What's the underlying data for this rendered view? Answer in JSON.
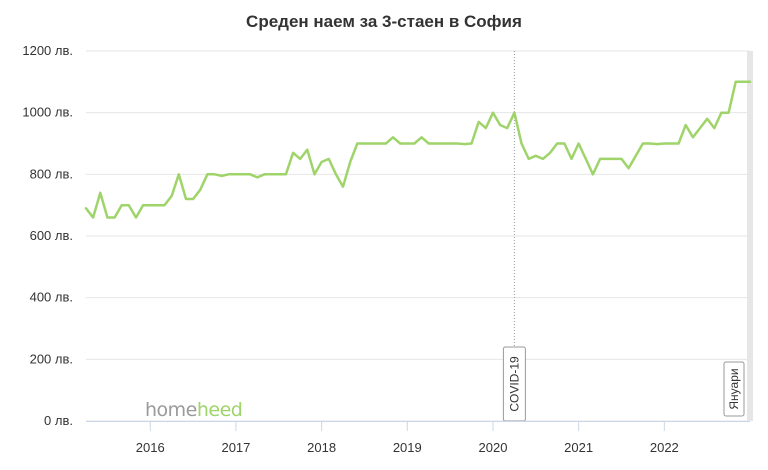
{
  "chart_data": {
    "type": "line",
    "title": "Среден наем за 3-стаен в София",
    "xlabel": "",
    "ylabel": "",
    "ylim": [
      0,
      1200
    ],
    "y_ticks": [
      0,
      200,
      400,
      600,
      800,
      1000,
      1200
    ],
    "y_tick_labels": [
      "0 лв.",
      "200 лв.",
      "400 лв.",
      "600 лв.",
      "800 лв.",
      "1000 лв.",
      "1200 лв."
    ],
    "xlim": [
      "2015-04",
      "2023-01"
    ],
    "x_tick_labels": [
      "2016",
      "2017",
      "2018",
      "2019",
      "2020",
      "2021",
      "2022"
    ],
    "x_tick_values": [
      "2016-01",
      "2017-01",
      "2018-01",
      "2019-01",
      "2020-01",
      "2021-01",
      "2022-01"
    ],
    "grid": true,
    "line_color": "#9fd46a",
    "series": [
      {
        "name": "",
        "points": [
          [
            "2015-04",
            690
          ],
          [
            "2015-05",
            660
          ],
          [
            "2015-06",
            740
          ],
          [
            "2015-07",
            660
          ],
          [
            "2015-08",
            660
          ],
          [
            "2015-09",
            700
          ],
          [
            "2015-10",
            700
          ],
          [
            "2015-11",
            660
          ],
          [
            "2015-12",
            700
          ],
          [
            "2016-01",
            700
          ],
          [
            "2016-02",
            700
          ],
          [
            "2016-03",
            700
          ],
          [
            "2016-04",
            730
          ],
          [
            "2016-05",
            800
          ],
          [
            "2016-06",
            720
          ],
          [
            "2016-07",
            720
          ],
          [
            "2016-08",
            750
          ],
          [
            "2016-09",
            800
          ],
          [
            "2016-10",
            800
          ],
          [
            "2016-11",
            795
          ],
          [
            "2016-12",
            800
          ],
          [
            "2017-01",
            800
          ],
          [
            "2017-02",
            800
          ],
          [
            "2017-03",
            800
          ],
          [
            "2017-04",
            790
          ],
          [
            "2017-05",
            800
          ],
          [
            "2017-06",
            800
          ],
          [
            "2017-07",
            800
          ],
          [
            "2017-08",
            800
          ],
          [
            "2017-09",
            870
          ],
          [
            "2017-10",
            850
          ],
          [
            "2017-11",
            880
          ],
          [
            "2017-12",
            800
          ],
          [
            "2018-01",
            840
          ],
          [
            "2018-02",
            850
          ],
          [
            "2018-03",
            800
          ],
          [
            "2018-04",
            760
          ],
          [
            "2018-05",
            840
          ],
          [
            "2018-06",
            900
          ],
          [
            "2018-07",
            900
          ],
          [
            "2018-08",
            900
          ],
          [
            "2018-09",
            900
          ],
          [
            "2018-10",
            900
          ],
          [
            "2018-11",
            920
          ],
          [
            "2018-12",
            900
          ],
          [
            "2019-01",
            900
          ],
          [
            "2019-02",
            900
          ],
          [
            "2019-03",
            920
          ],
          [
            "2019-04",
            900
          ],
          [
            "2019-05",
            900
          ],
          [
            "2019-06",
            900
          ],
          [
            "2019-07",
            900
          ],
          [
            "2019-08",
            900
          ],
          [
            "2019-09",
            898
          ],
          [
            "2019-10",
            900
          ],
          [
            "2019-11",
            970
          ],
          [
            "2019-12",
            950
          ],
          [
            "2020-01",
            1000
          ],
          [
            "2020-02",
            960
          ],
          [
            "2020-03",
            950
          ],
          [
            "2020-04",
            1000
          ],
          [
            "2020-05",
            900
          ],
          [
            "2020-06",
            850
          ],
          [
            "2020-07",
            860
          ],
          [
            "2020-08",
            850
          ],
          [
            "2020-09",
            870
          ],
          [
            "2020-10",
            900
          ],
          [
            "2020-11",
            900
          ],
          [
            "2020-12",
            850
          ],
          [
            "2021-01",
            900
          ],
          [
            "2021-02",
            850
          ],
          [
            "2021-03",
            800
          ],
          [
            "2021-04",
            850
          ],
          [
            "2021-05",
            850
          ],
          [
            "2021-06",
            850
          ],
          [
            "2021-07",
            850
          ],
          [
            "2021-08",
            820
          ],
          [
            "2021-09",
            860
          ],
          [
            "2021-10",
            900
          ],
          [
            "2021-11",
            900
          ],
          [
            "2021-12",
            898
          ],
          [
            "2022-01",
            900
          ],
          [
            "2022-02",
            900
          ],
          [
            "2022-03",
            900
          ],
          [
            "2022-04",
            960
          ],
          [
            "2022-05",
            920
          ],
          [
            "2022-06",
            950
          ],
          [
            "2022-07",
            980
          ],
          [
            "2022-08",
            950
          ],
          [
            "2022-09",
            1000
          ],
          [
            "2022-10",
            1000
          ],
          [
            "2022-11",
            1100
          ],
          [
            "2022-12",
            1100
          ],
          [
            "2023-01",
            1100
          ]
        ]
      }
    ],
    "annotations": [
      {
        "label": "COVID-19",
        "x": "2020-04",
        "type": "vline-dotted"
      },
      {
        "label": "Януари",
        "x": "2023-01",
        "type": "band"
      }
    ],
    "watermark": {
      "part1": "home",
      "part2": "heed",
      "color1": "#9a9a9a",
      "color2": "#9fd46a"
    }
  }
}
